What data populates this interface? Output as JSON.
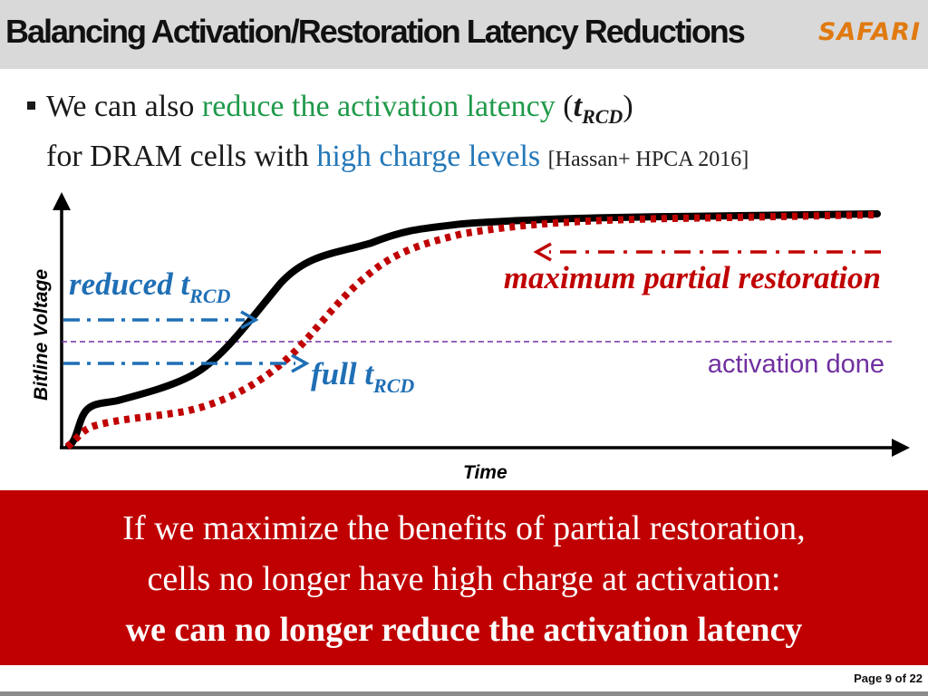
{
  "header": {
    "title": "Balancing Activation/Restoration Latency Reductions",
    "logo": "SAFARI"
  },
  "bullet": {
    "line1_a": "We can also ",
    "line1_b": "reduce the activation latency",
    "line1_c": " (",
    "line1_t": "t",
    "line1_sub": "RCD",
    "line1_d": ")",
    "line2_a": "for DRAM cells with ",
    "line2_b": "high charge levels",
    "line2_c": " ",
    "citation": "[Hassan+ HPCA 2016]"
  },
  "diagram": {
    "y_axis_label": "Bitline Voltage",
    "x_axis_label": "Time",
    "reduced_label": "reduced t",
    "reduced_sub": "RCD",
    "full_label": "full t",
    "full_sub": "RCD",
    "max_partial_label": "maximum partial restoration",
    "activation_done_label": "activation done",
    "colors": {
      "black_curve": "#000000",
      "red_curve": "#c00000",
      "blue_arrow": "#1f6fb5",
      "purple": "#7030a0",
      "red_arrow": "#c00000"
    }
  },
  "callout": {
    "line1": "If we maximize the benefits of partial restoration,",
    "line2": "cells no longer have high charge at activation:",
    "line3": "we can no longer reduce the activation latency"
  },
  "footer": {
    "page": "Page 9 of 22"
  }
}
